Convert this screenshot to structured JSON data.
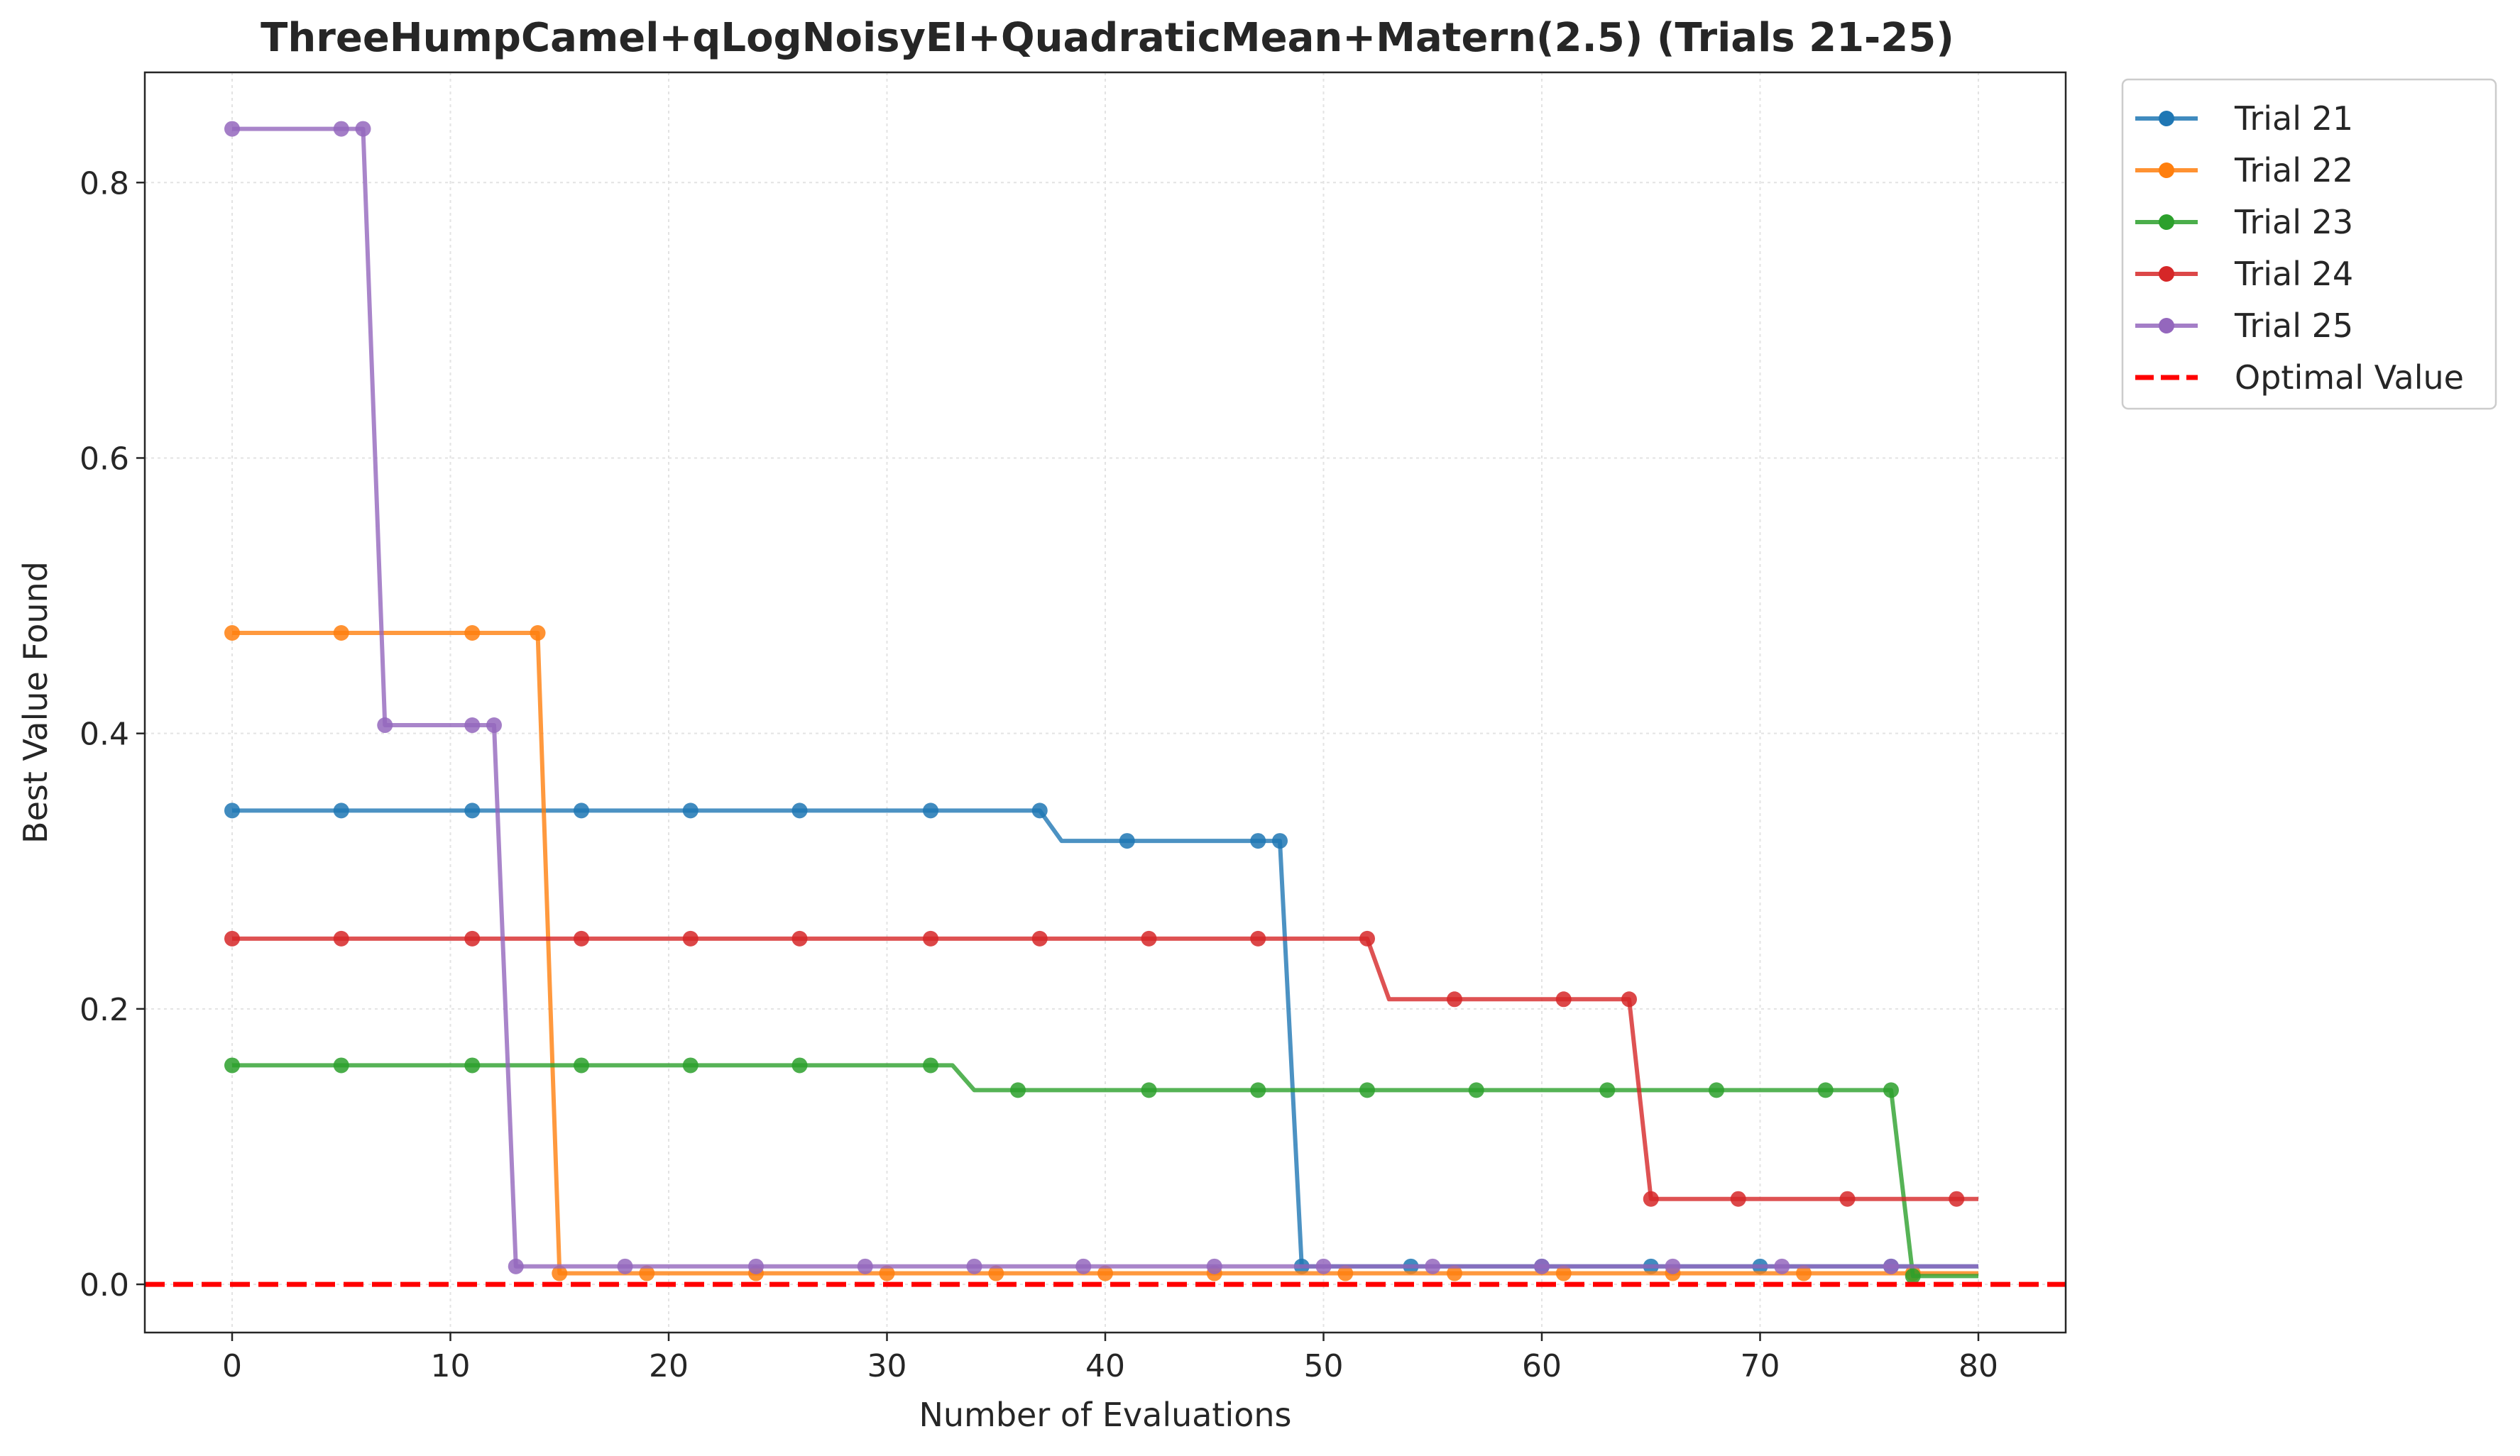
{
  "chart_data": {
    "type": "line",
    "title": "ThreeHumpCamel+qLogNoisyEI+QuadraticMean+Matern(2.5) (Trials 21-25)",
    "xlabel": "Number of Evaluations",
    "ylabel": "Best Value Found",
    "xlim": [
      -4,
      84
    ],
    "ylim": [
      -0.035,
      0.88
    ],
    "xticks": [
      0,
      10,
      20,
      30,
      40,
      50,
      60,
      70,
      80
    ],
    "xtick_labels": [
      "0",
      "10",
      "20",
      "30",
      "40",
      "50",
      "60",
      "70",
      "80"
    ],
    "yticks": [
      0.0,
      0.2,
      0.4,
      0.6,
      0.8
    ],
    "ytick_labels": [
      "0.0",
      "0.2",
      "0.4",
      "0.6",
      "0.8"
    ],
    "grid": true,
    "legend_position": "outside-top-right",
    "series": [
      {
        "name": "Trial 21",
        "color": "#1f77b4",
        "steps": [
          [
            0,
            0.344
          ],
          [
            38,
            0.322
          ],
          [
            49,
            0.013
          ]
        ],
        "markers": [
          0,
          5,
          11,
          16,
          21,
          26,
          32,
          37,
          41,
          47,
          48,
          49,
          54,
          60,
          65,
          70,
          76
        ]
      },
      {
        "name": "Trial 22",
        "color": "#ff7f0e",
        "steps": [
          [
            0,
            0.473
          ],
          [
            15,
            0.008
          ]
        ],
        "markers": [
          0,
          5,
          11,
          14,
          15,
          19,
          24,
          30,
          35,
          40,
          45,
          51,
          56,
          61,
          66,
          72,
          77
        ]
      },
      {
        "name": "Trial 23",
        "color": "#2ca02c",
        "steps": [
          [
            0,
            0.159
          ],
          [
            34,
            0.141
          ],
          [
            77,
            0.006
          ]
        ],
        "markers": [
          0,
          5,
          11,
          16,
          21,
          26,
          32,
          36,
          42,
          47,
          52,
          57,
          63,
          68,
          73,
          76,
          77
        ]
      },
      {
        "name": "Trial 24",
        "color": "#d62728",
        "steps": [
          [
            0,
            0.251
          ],
          [
            53,
            0.207
          ],
          [
            65,
            0.062
          ]
        ],
        "markers": [
          0,
          5,
          11,
          16,
          21,
          26,
          32,
          37,
          42,
          47,
          52,
          56,
          61,
          64,
          65,
          69,
          74,
          79
        ]
      },
      {
        "name": "Trial 25",
        "color": "#9467bd",
        "steps": [
          [
            0,
            0.839
          ],
          [
            7,
            0.406
          ],
          [
            13,
            0.013
          ]
        ],
        "markers": [
          0,
          5,
          6,
          7,
          11,
          12,
          13,
          18,
          24,
          29,
          34,
          39,
          45,
          50,
          55,
          60,
          66,
          71,
          76
        ]
      }
    ],
    "reference_lines": [
      {
        "name": "Optimal Value",
        "y": 0.0,
        "color": "#ff0000",
        "style": "dashed"
      }
    ]
  }
}
